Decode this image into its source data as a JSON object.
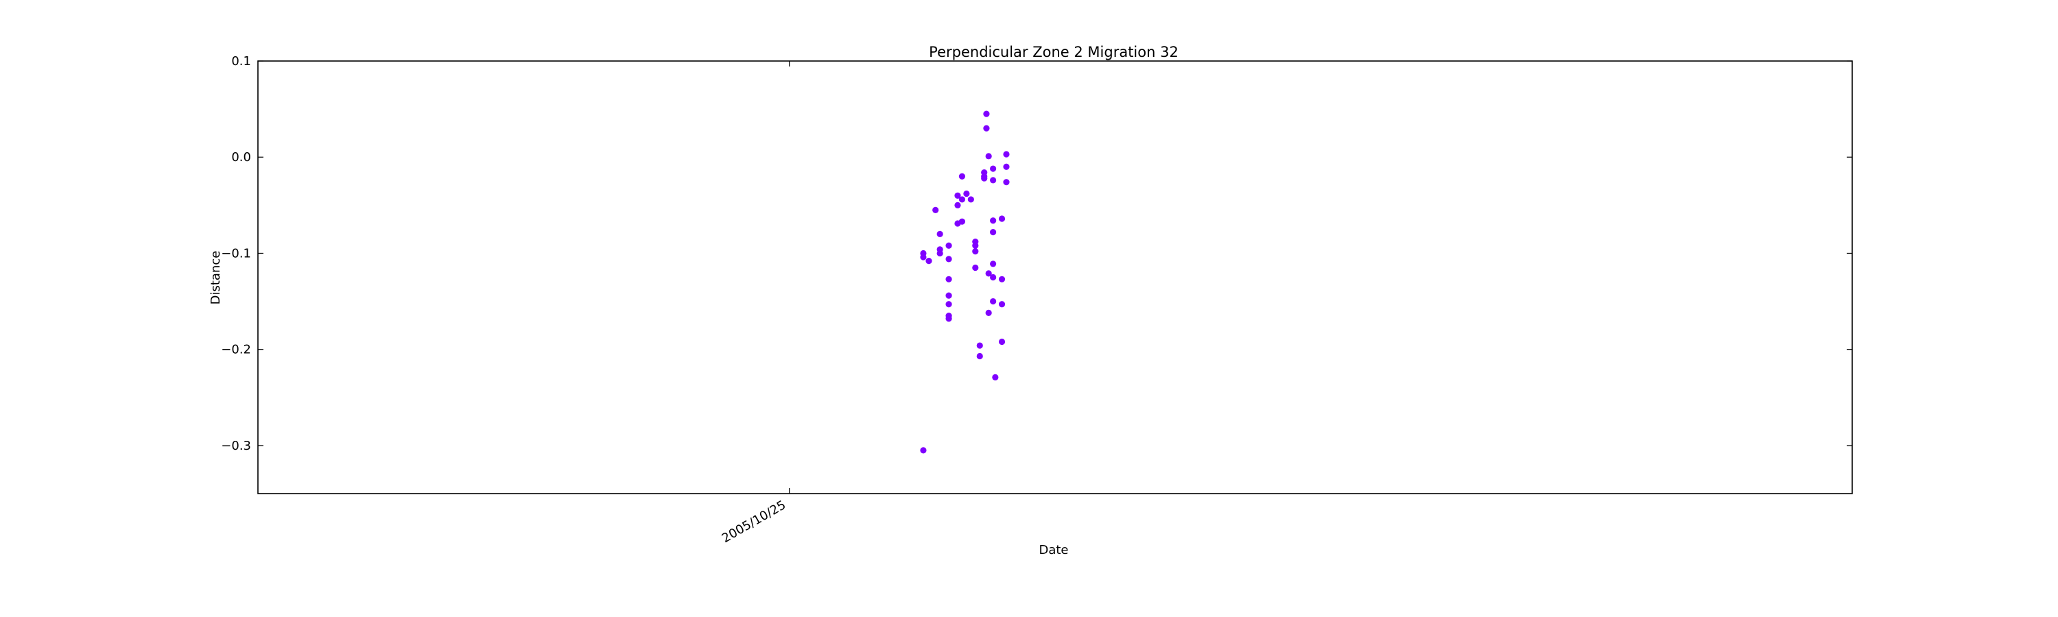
{
  "chart_data": {
    "type": "scatter",
    "title": "Perpendicular Zone 2 Migration 32",
    "xlabel": "Date",
    "ylabel": "Distance",
    "ylim": [
      -0.35,
      0.1
    ],
    "xlim": [
      "2005/10/15",
      "2005/11/14"
    ],
    "yticks": [
      {
        "value": 0.1,
        "label": "0.1"
      },
      {
        "value": 0.0,
        "label": "0.0"
      },
      {
        "value": -0.1,
        "label": "−0.1"
      },
      {
        "value": -0.2,
        "label": "−0.2"
      },
      {
        "value": -0.3,
        "label": "−0.3"
      }
    ],
    "xticks": [
      {
        "value": "2005/10/25",
        "label": "2005/10/25"
      }
    ],
    "grid": false,
    "marker_color": "#7f00ff",
    "points": [
      {
        "x": "2005/10/27 12:30",
        "y": -0.1
      },
      {
        "x": "2005/10/27 12:30",
        "y": -0.104
      },
      {
        "x": "2005/10/27 15:00",
        "y": -0.108
      },
      {
        "x": "2005/10/27 12:30",
        "y": -0.305
      },
      {
        "x": "2005/10/27 18:00",
        "y": -0.055
      },
      {
        "x": "2005/10/27 20:00",
        "y": -0.08
      },
      {
        "x": "2005/10/27 20:00",
        "y": -0.096
      },
      {
        "x": "2005/10/27 20:00",
        "y": -0.1
      },
      {
        "x": "2005/10/28 00:00",
        "y": -0.092
      },
      {
        "x": "2005/10/28 00:00",
        "y": -0.106
      },
      {
        "x": "2005/10/28 00:00",
        "y": -0.127
      },
      {
        "x": "2005/10/28 00:00",
        "y": -0.144
      },
      {
        "x": "2005/10/28 00:00",
        "y": -0.153
      },
      {
        "x": "2005/10/28 00:00",
        "y": -0.165
      },
      {
        "x": "2005/10/28 00:00",
        "y": -0.168
      },
      {
        "x": "2005/10/28 04:00",
        "y": -0.069
      },
      {
        "x": "2005/10/28 06:00",
        "y": -0.067
      },
      {
        "x": "2005/10/28 04:00",
        "y": -0.05
      },
      {
        "x": "2005/10/28 04:00",
        "y": -0.04
      },
      {
        "x": "2005/10/28 08:00",
        "y": -0.038
      },
      {
        "x": "2005/10/28 06:00",
        "y": -0.044
      },
      {
        "x": "2005/10/28 10:00",
        "y": -0.044
      },
      {
        "x": "2005/10/28 06:00",
        "y": -0.02
      },
      {
        "x": "2005/10/28 12:00",
        "y": -0.088
      },
      {
        "x": "2005/10/28 12:00",
        "y": -0.092
      },
      {
        "x": "2005/10/28 12:00",
        "y": -0.098
      },
      {
        "x": "2005/10/28 12:00",
        "y": -0.115
      },
      {
        "x": "2005/10/28 14:00",
        "y": -0.196
      },
      {
        "x": "2005/10/28 14:00",
        "y": -0.207
      },
      {
        "x": "2005/10/28 16:00",
        "y": -0.02
      },
      {
        "x": "2005/10/28 16:00",
        "y": -0.016
      },
      {
        "x": "2005/10/28 16:00",
        "y": -0.022
      },
      {
        "x": "2005/10/28 17:00",
        "y": 0.045
      },
      {
        "x": "2005/10/28 17:00",
        "y": 0.03
      },
      {
        "x": "2005/10/28 18:00",
        "y": 0.001
      },
      {
        "x": "2005/10/28 20:00",
        "y": -0.012
      },
      {
        "x": "2005/10/28 20:00",
        "y": -0.024
      },
      {
        "x": "2005/10/28 20:00",
        "y": -0.066
      },
      {
        "x": "2005/10/28 20:00",
        "y": -0.078
      },
      {
        "x": "2005/10/28 20:00",
        "y": -0.111
      },
      {
        "x": "2005/10/28 18:00",
        "y": -0.121
      },
      {
        "x": "2005/10/28 20:00",
        "y": -0.125
      },
      {
        "x": "2005/10/28 20:00",
        "y": -0.15
      },
      {
        "x": "2005/10/28 18:00",
        "y": -0.162
      },
      {
        "x": "2005/10/28 21:00",
        "y": -0.229
      },
      {
        "x": "2005/10/29 00:00",
        "y": -0.064
      },
      {
        "x": "2005/10/29 00:00",
        "y": -0.127
      },
      {
        "x": "2005/10/29 00:00",
        "y": -0.153
      },
      {
        "x": "2005/10/29 00:00",
        "y": -0.192
      },
      {
        "x": "2005/10/29 02:00",
        "y": 0.003
      },
      {
        "x": "2005/10/29 02:00",
        "y": -0.01
      },
      {
        "x": "2005/10/29 02:00",
        "y": -0.026
      }
    ]
  }
}
